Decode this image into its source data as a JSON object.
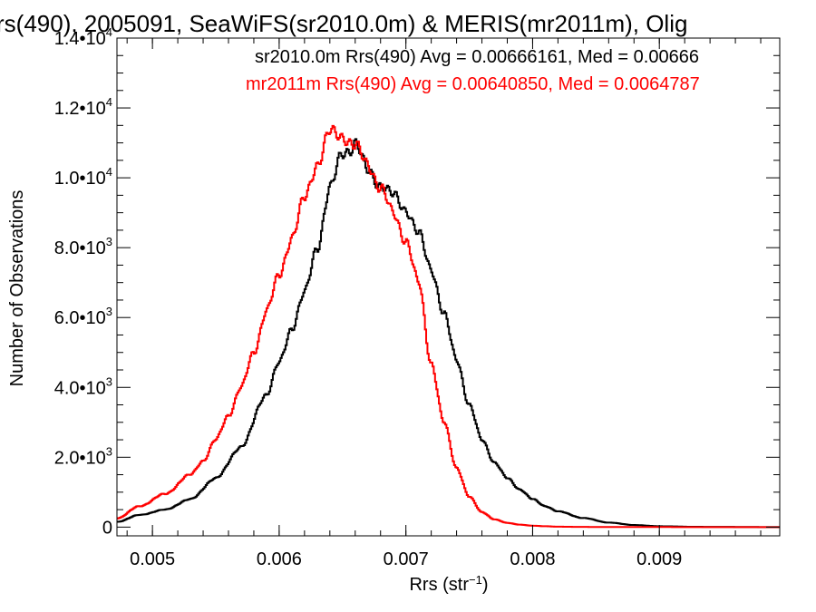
{
  "chart_data": {
    "type": "line",
    "title": "rs(490), 2005091, SeaWiFS(sr2010.0m) & MERIS(mr2011m), Olig",
    "xlabel": "Rrs (str",
    "xlabel_sup": "−1",
    "xlabel_end": ")",
    "ylabel": "Number of Observations",
    "xlim": [
      0.00472,
      0.00995
    ],
    "ylim": [
      -250,
      14000
    ],
    "grid": false,
    "x_ticks": [
      {
        "value": 0.005,
        "label": "0.005"
      },
      {
        "value": 0.006,
        "label": "0.006"
      },
      {
        "value": 0.007,
        "label": "0.007"
      },
      {
        "value": 0.008,
        "label": "0.008"
      },
      {
        "value": 0.009,
        "label": "0.009"
      }
    ],
    "y_ticks": [
      {
        "value": 0,
        "label": "0",
        "exp": ""
      },
      {
        "value": 2000,
        "label": "2.0•10",
        "exp": "3"
      },
      {
        "value": 4000,
        "label": "4.0•10",
        "exp": "3"
      },
      {
        "value": 6000,
        "label": "6.0•10",
        "exp": "3"
      },
      {
        "value": 8000,
        "label": "8.0•10",
        "exp": "3"
      },
      {
        "value": 10000,
        "label": "1.0•10",
        "exp": "4"
      },
      {
        "value": 12000,
        "label": "1.2•10",
        "exp": "4"
      },
      {
        "value": 14000,
        "label": "1.4•10",
        "exp": "4"
      }
    ],
    "annotations": [
      {
        "text": "sr2010.0m Rrs(490) Avg = 0.00666161, Med = 0.00666",
        "color": "#000000"
      },
      {
        "text": "mr2011m Rrs(490) Avg = 0.00640850, Med = 0.0064787",
        "color": "#ff0000"
      }
    ],
    "series": [
      {
        "color": "#000000",
        "x": [
          0.00472,
          0.0049,
          0.0051,
          0.0053,
          0.0055,
          0.0057,
          0.0059,
          0.006,
          0.0061,
          0.0062,
          0.0063,
          0.0064,
          0.0065,
          0.00655,
          0.0066,
          0.0067,
          0.0068,
          0.0069,
          0.007,
          0.0071,
          0.0072,
          0.0073,
          0.0074,
          0.0075,
          0.0076,
          0.0077,
          0.0078,
          0.0079,
          0.008,
          0.0081,
          0.0082,
          0.0084,
          0.0086,
          0.0088,
          0.009,
          0.0093,
          0.00995
        ],
        "y": [
          150,
          350,
          500,
          800,
          1400,
          2300,
          3800,
          4700,
          5700,
          6700,
          8000,
          9700,
          10700,
          10800,
          11000,
          10200,
          9800,
          9500,
          9100,
          8400,
          7400,
          6100,
          4800,
          3500,
          2500,
          1850,
          1400,
          1080,
          800,
          600,
          450,
          260,
          130,
          60,
          25,
          8,
          0
        ]
      },
      {
        "color": "#ff0000",
        "x": [
          0.00472,
          0.0049,
          0.0051,
          0.0053,
          0.0054,
          0.0055,
          0.0056,
          0.0057,
          0.0058,
          0.0059,
          0.006,
          0.0061,
          0.0062,
          0.0063,
          0.0064,
          0.0065,
          0.0066,
          0.0067,
          0.0068,
          0.0069,
          0.007,
          0.0071,
          0.0072,
          0.0073,
          0.0074,
          0.0075,
          0.0076,
          0.0077,
          0.0078,
          0.0079,
          0.008,
          0.0081,
          0.0082,
          0.0084,
          0.0086,
          0.00995
        ],
        "y": [
          250,
          600,
          950,
          1500,
          1900,
          2500,
          3200,
          4000,
          5000,
          6200,
          7200,
          8300,
          9400,
          10400,
          11300,
          11200,
          10900,
          10400,
          9700,
          9000,
          8200,
          7000,
          4700,
          3000,
          1700,
          870,
          430,
          220,
          120,
          70,
          40,
          25,
          12,
          5,
          2,
          0
        ]
      }
    ]
  }
}
